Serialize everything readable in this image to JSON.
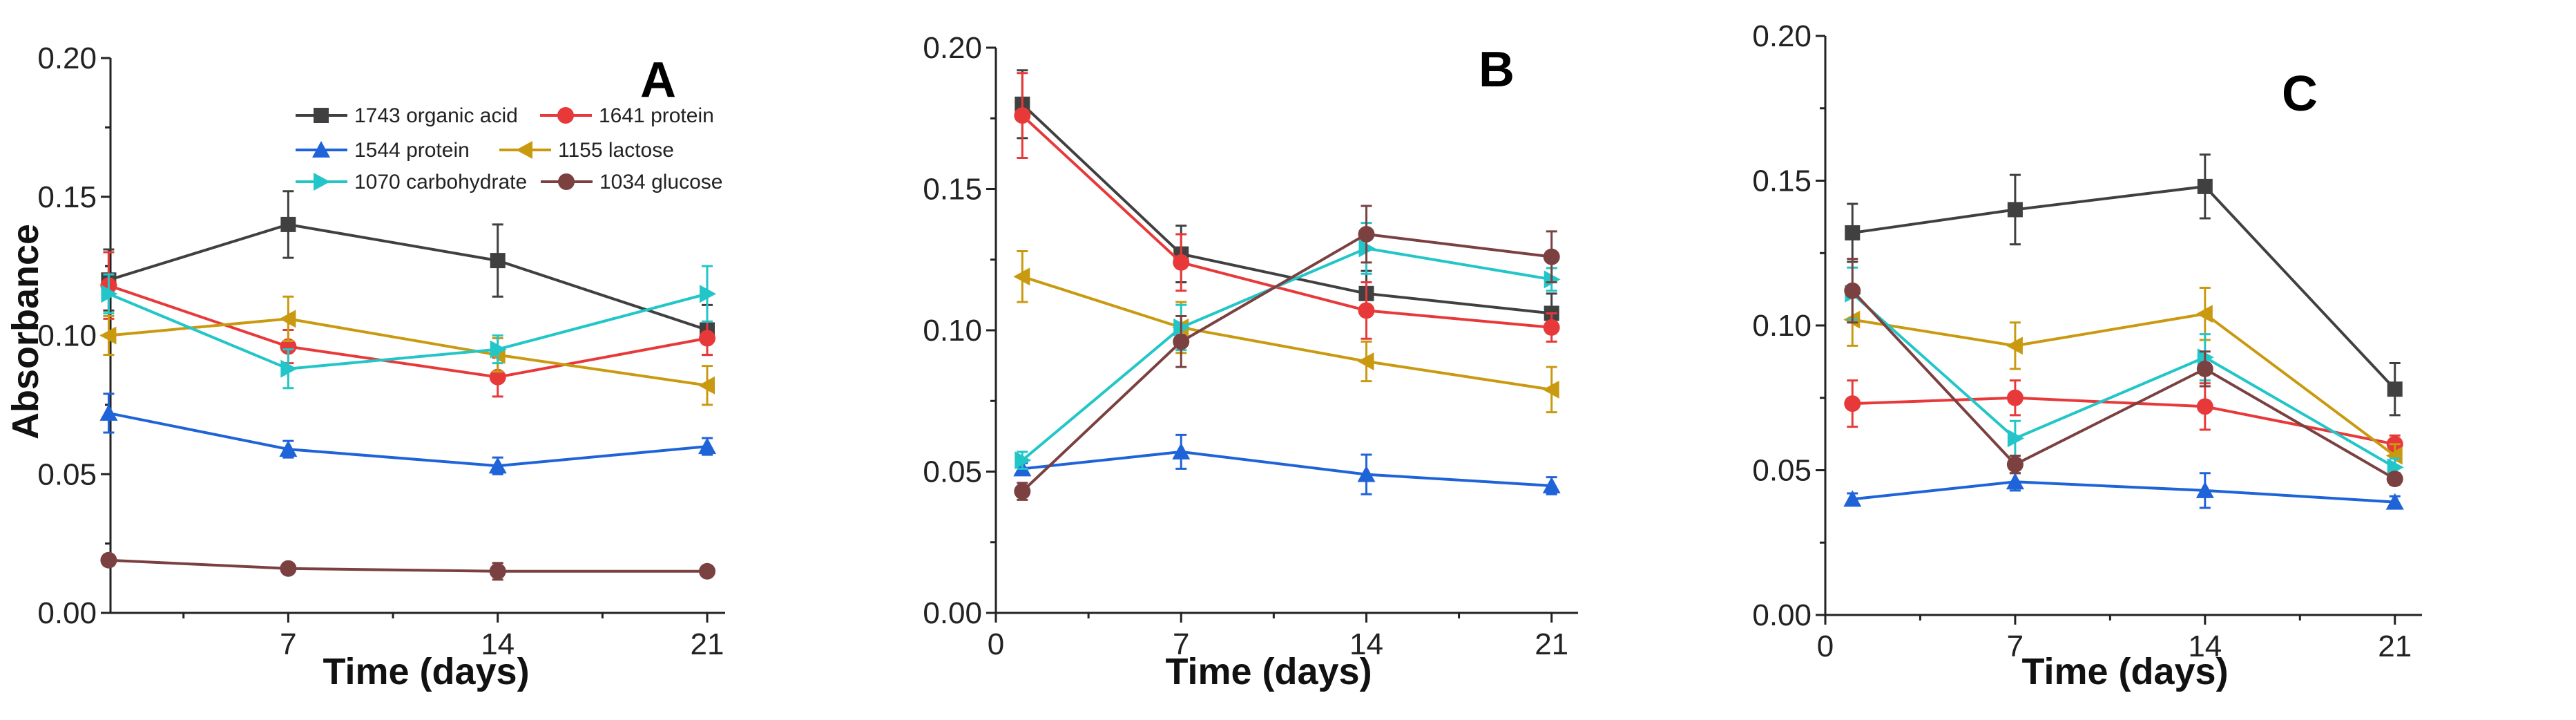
{
  "chart_data": {
    "type": "line",
    "legend_placement": "top-right of panel A",
    "series_meta": [
      {
        "name": "1743 organic acid",
        "color": "#404040",
        "marker": "square"
      },
      {
        "name": "1641 protein",
        "color": "#e8393a",
        "marker": "circle"
      },
      {
        "name": "1544 protein",
        "color": "#1f63d8",
        "marker": "triangle-up"
      },
      {
        "name": "1155 lactose",
        "color": "#c99a10",
        "marker": "triangle-left"
      },
      {
        "name": "1070 carbohydrate",
        "color": "#22c6c8",
        "marker": "triangle-right"
      },
      {
        "name": "1034 glucose",
        "color": "#7b4040",
        "marker": "circle"
      }
    ],
    "panels": [
      {
        "label": "A",
        "xlabel": "Time (days)",
        "ylabel": "Absorbance",
        "xlim": [
          1.06,
          21.6
        ],
        "ylim": [
          0,
          0.2
        ],
        "xticks": [
          7,
          14,
          21
        ],
        "yticks": [
          "0.00",
          "0.05",
          "0.10",
          "0.15",
          "0.20"
        ],
        "x": [
          1,
          7,
          14,
          21
        ],
        "series": [
          {
            "name": "1743 organic acid",
            "values": [
              0.12,
              0.14,
              0.127,
              0.102
            ],
            "err": [
              0.011,
              0.012,
              0.013,
              0.009
            ]
          },
          {
            "name": "1641 protein",
            "values": [
              0.118,
              0.096,
              0.085,
              0.099
            ],
            "err": [
              0.012,
              0.006,
              0.007,
              0.006
            ]
          },
          {
            "name": "1544 protein",
            "values": [
              0.072,
              0.059,
              0.053,
              0.06
            ],
            "err": [
              0.007,
              0.003,
              0.003,
              0.003
            ]
          },
          {
            "name": "1155 lactose",
            "values": [
              0.1,
              0.106,
              0.093,
              0.082
            ],
            "err": [
              0.007,
              0.008,
              0.006,
              0.007
            ]
          },
          {
            "name": "1070 carbohydrate",
            "values": [
              0.115,
              0.088,
              0.095,
              0.115
            ],
            "err": [
              0.007,
              0.007,
              0.005,
              0.01
            ]
          },
          {
            "name": "1034 glucose",
            "values": [
              0.019,
              0.016,
              0.015,
              0.015
            ],
            "err": [
              0.001,
              0.001,
              0.003,
              0.001
            ]
          }
        ]
      },
      {
        "label": "B",
        "xlabel": "Time (days)",
        "ylabel": "",
        "xlim": [
          0,
          22
        ],
        "ylim": [
          0,
          0.2
        ],
        "xticks": [
          0,
          7,
          14,
          21
        ],
        "yticks": [
          "0.00",
          "0.05",
          "0.10",
          "0.15",
          "0.20"
        ],
        "x": [
          1,
          7,
          14,
          21
        ],
        "series": [
          {
            "name": "1743 organic acid",
            "values": [
              0.18,
              0.127,
              0.113,
              0.106
            ],
            "err": [
              0.012,
              0.01,
              0.008,
              0.007
            ]
          },
          {
            "name": "1641 protein",
            "values": [
              0.176,
              0.124,
              0.107,
              0.101
            ],
            "err": [
              0.015,
              0.01,
              0.01,
              0.005
            ]
          },
          {
            "name": "1544 protein",
            "values": [
              0.051,
              0.057,
              0.049,
              0.045
            ],
            "err": [
              0.002,
              0.006,
              0.007,
              0.003
            ]
          },
          {
            "name": "1155 lactose",
            "values": [
              0.119,
              0.101,
              0.089,
              0.079
            ],
            "err": [
              0.009,
              0.009,
              0.007,
              0.008
            ]
          },
          {
            "name": "1070 carbohydrate",
            "values": [
              0.054,
              0.101,
              0.129,
              0.118
            ],
            "err": [
              0.003,
              0.008,
              0.009,
              0.004
            ]
          },
          {
            "name": "1034 glucose",
            "values": [
              0.043,
              0.096,
              0.134,
              0.126
            ],
            "err": [
              0.003,
              0.009,
              0.01,
              0.009
            ]
          }
        ]
      },
      {
        "label": "C",
        "xlabel": "Time (days)",
        "ylabel": "",
        "xlim": [
          0,
          22
        ],
        "ylim": [
          0,
          0.2
        ],
        "xticks": [
          0,
          7,
          14,
          21
        ],
        "yticks": [
          "0.00",
          "0.05",
          "0.10",
          "0.15",
          "0.20"
        ],
        "x": [
          1,
          7,
          14,
          21
        ],
        "series": [
          {
            "name": "1743 organic acid",
            "values": [
              0.132,
              0.14,
              0.148,
              0.078
            ],
            "err": [
              0.01,
              0.012,
              0.011,
              0.009
            ]
          },
          {
            "name": "1641 protein",
            "values": [
              0.073,
              0.075,
              0.072,
              0.059
            ],
            "err": [
              0.008,
              0.006,
              0.008,
              0.003
            ]
          },
          {
            "name": "1544 protein",
            "values": [
              0.04,
              0.046,
              0.043,
              0.039
            ],
            "err": [
              0.002,
              0.003,
              0.006,
              0.002
            ]
          },
          {
            "name": "1155 lactose",
            "values": [
              0.102,
              0.093,
              0.104,
              0.055
            ],
            "err": [
              0.009,
              0.008,
              0.009,
              0.004
            ]
          },
          {
            "name": "1070 carbohydrate",
            "values": [
              0.111,
              0.061,
              0.089,
              0.051
            ],
            "err": [
              0.009,
              0.006,
              0.008,
              0.003
            ]
          },
          {
            "name": "1034 glucose",
            "values": [
              0.112,
              0.052,
              0.085,
              0.047
            ],
            "err": [
              0.011,
              0.003,
              0.006,
              0.002
            ]
          }
        ]
      }
    ]
  }
}
